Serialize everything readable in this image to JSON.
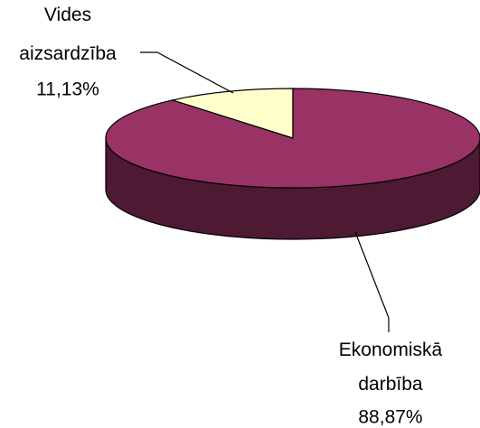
{
  "chart_data": {
    "type": "pie",
    "categories": [
      "Vides aizsardzība",
      "Ekonomiskā darbība"
    ],
    "values": [
      11.13,
      88.87
    ],
    "value_labels": [
      "11,13%",
      "88,87%"
    ],
    "colors": [
      "#ffffcc",
      "#993366"
    ],
    "side_colors": [
      "#b3b38f",
      "#4d1933"
    ]
  }
}
